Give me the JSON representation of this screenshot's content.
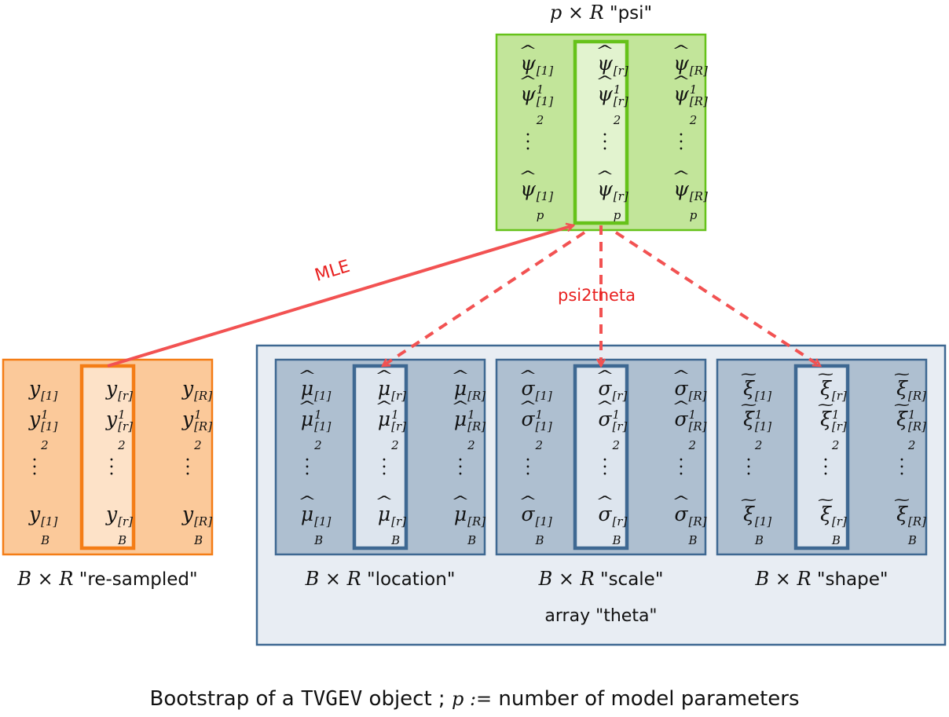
{
  "psi": {
    "caption_dims": "p × R",
    "caption_name": "\"psi\"",
    "col_first": [
      "ψ",
      "1",
      "[1]",
      "2",
      "[1]",
      "p",
      "[1]"
    ],
    "col_mid": [
      "ψ",
      "1",
      "[r]",
      "2",
      "[r]",
      "p",
      "[r]"
    ],
    "col_last": [
      "ψ",
      "1",
      "[R]",
      "2",
      "[R]",
      "p",
      "[R]"
    ]
  },
  "resampled": {
    "caption_dims": "B × R",
    "caption_name": "\"re-sampled\"",
    "symbol": "y"
  },
  "location": {
    "caption_dims": "B × R",
    "caption_name": "\"location\"",
    "symbol": "μ"
  },
  "scale": {
    "caption_dims": "B × R",
    "caption_name": "\"scale\"",
    "symbol": "σ"
  },
  "shape": {
    "caption_dims": "B × R",
    "caption_name": "\"shape\"",
    "symbol": "ξ"
  },
  "theta": {
    "caption": "array \"theta\""
  },
  "arrows": {
    "mle_label": "MLE",
    "psi2theta_label": "psi2theta"
  },
  "footer": {
    "prefix": "Bootstrap of a",
    "code": "TVGEV",
    "middle": "object ;",
    "math": "p :=",
    "suffix": "number of model parameters"
  },
  "colors": {
    "green_fill": "#c2e59a",
    "green_border": "#66c21a",
    "green_light": "#e2f3cf",
    "orange_fill": "#fbc99a",
    "orange_border": "#f47d16",
    "orange_light": "#fde2c8",
    "blue_outer_fill": "#e8edf3",
    "blue_border": "#3e6892",
    "blue_fill": "#aebfd0",
    "blue_light": "#dde5ee",
    "arrow_red": "#f25252",
    "label_red": "#e8201f"
  }
}
